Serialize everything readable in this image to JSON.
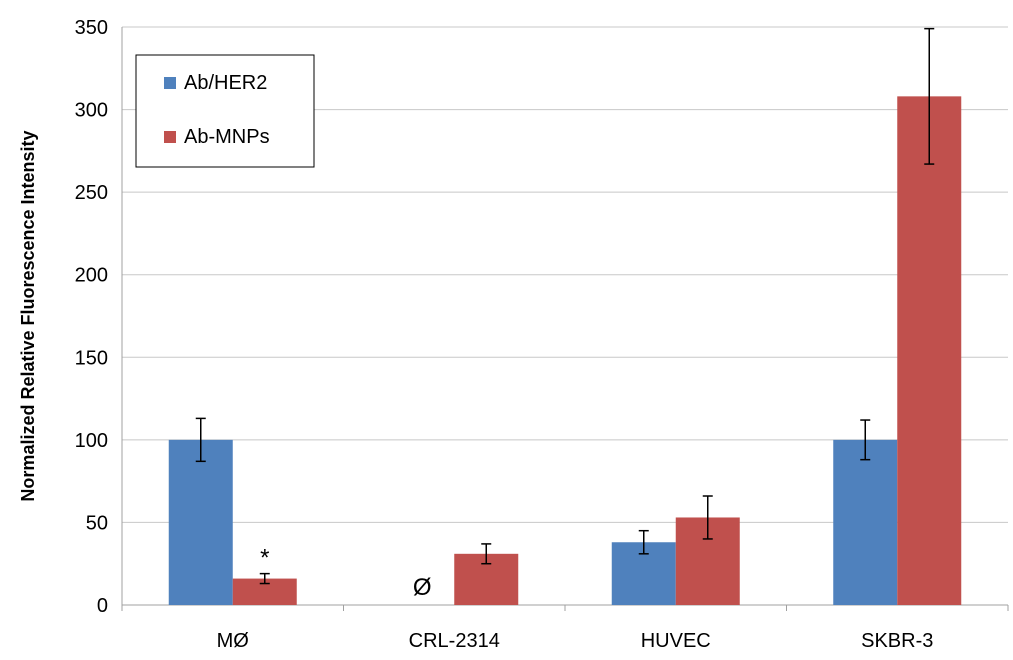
{
  "chart_data": {
    "type": "bar",
    "title": "",
    "xlabel": "",
    "ylabel": "Normalized Relative Fluorescence Intensity",
    "ylim": [
      0,
      350
    ],
    "yticks": [
      0,
      50,
      100,
      150,
      200,
      250,
      300,
      350
    ],
    "categories": [
      "MØ",
      "CRL-2314",
      "HUVEC",
      "SKBR-3"
    ],
    "grid": "horizontal",
    "legend_position": "top-left",
    "series": [
      {
        "name": "Ab/HER2",
        "color": "#4f81bd",
        "values": [
          100,
          0,
          38,
          100
        ],
        "errors": [
          13,
          null,
          7,
          12
        ]
      },
      {
        "name": "Ab-MNPs",
        "color": "#c0504d",
        "values": [
          16,
          31,
          53,
          308
        ],
        "errors": [
          3,
          6,
          13,
          41
        ]
      }
    ],
    "annotations": [
      {
        "text": "*",
        "category": "MØ",
        "series": "Ab-MNPs"
      },
      {
        "text": "Ø",
        "category": "CRL-2314",
        "series": "Ab/HER2"
      }
    ]
  }
}
